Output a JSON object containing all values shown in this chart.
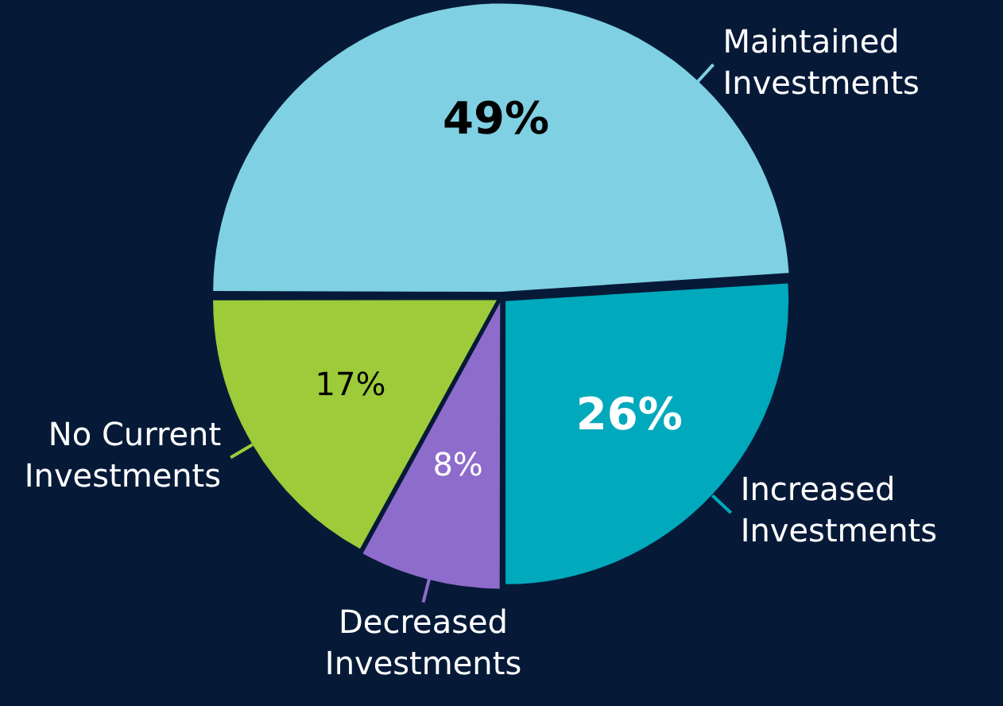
{
  "chart_data": {
    "type": "pie",
    "categories": [
      "Maintained Investments",
      "Increased Investments",
      "Decreased Investments",
      "No Current Investments"
    ],
    "values": [
      49,
      26,
      8,
      17
    ],
    "colors": [
      "#7fd0e3",
      "#00a9bc",
      "#8e6ccb",
      "#9ecb3a"
    ],
    "value_labels": [
      "49%",
      "26%",
      "8%",
      "17%"
    ],
    "legend": false
  }
}
